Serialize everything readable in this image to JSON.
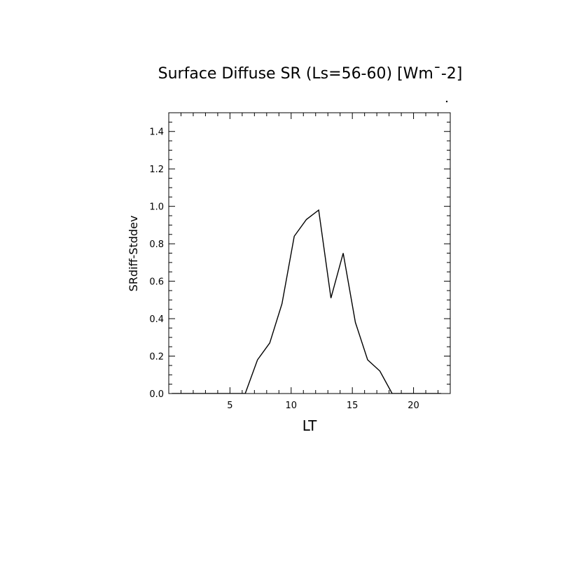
{
  "chart_data": {
    "type": "line",
    "title": "Surface Diffuse SR (Ls=56-60) [Wm¯-2]",
    "xlabel": "LT",
    "ylabel": "SRdiff-Stddev",
    "xlim": [
      0,
      23
    ],
    "ylim": [
      0,
      1.5
    ],
    "x_ticks": [
      5,
      10,
      15,
      20
    ],
    "y_ticks": [
      0.0,
      0.2,
      0.4,
      0.6,
      0.8,
      1.0,
      1.2,
      1.4
    ],
    "y_tick_labels": [
      "0.0",
      "0.2",
      "0.4",
      "0.6",
      "0.8",
      "1.0",
      "1.2",
      "1.4"
    ],
    "grid": false,
    "series": [
      {
        "x": [
          0.25,
          1.25,
          2.25,
          3.25,
          4.25,
          5.25,
          6.25,
          7.25,
          8.25,
          9.25,
          10.25,
          11.25,
          12.25,
          13.25,
          14.25,
          15.25,
          16.25,
          17.25,
          18.25,
          19.25,
          20.25,
          21.25,
          22.25
        ],
        "values": [
          0,
          0,
          0,
          0,
          0,
          0,
          0,
          0.18,
          0.27,
          0.48,
          0.84,
          0.93,
          0.98,
          0.51,
          0.75,
          0.38,
          0.18,
          0.12,
          0,
          0,
          0,
          0,
          0
        ]
      }
    ],
    "style": {
      "line_color": "#000000",
      "axis_color": "#000000",
      "background": "#ffffff"
    }
  }
}
